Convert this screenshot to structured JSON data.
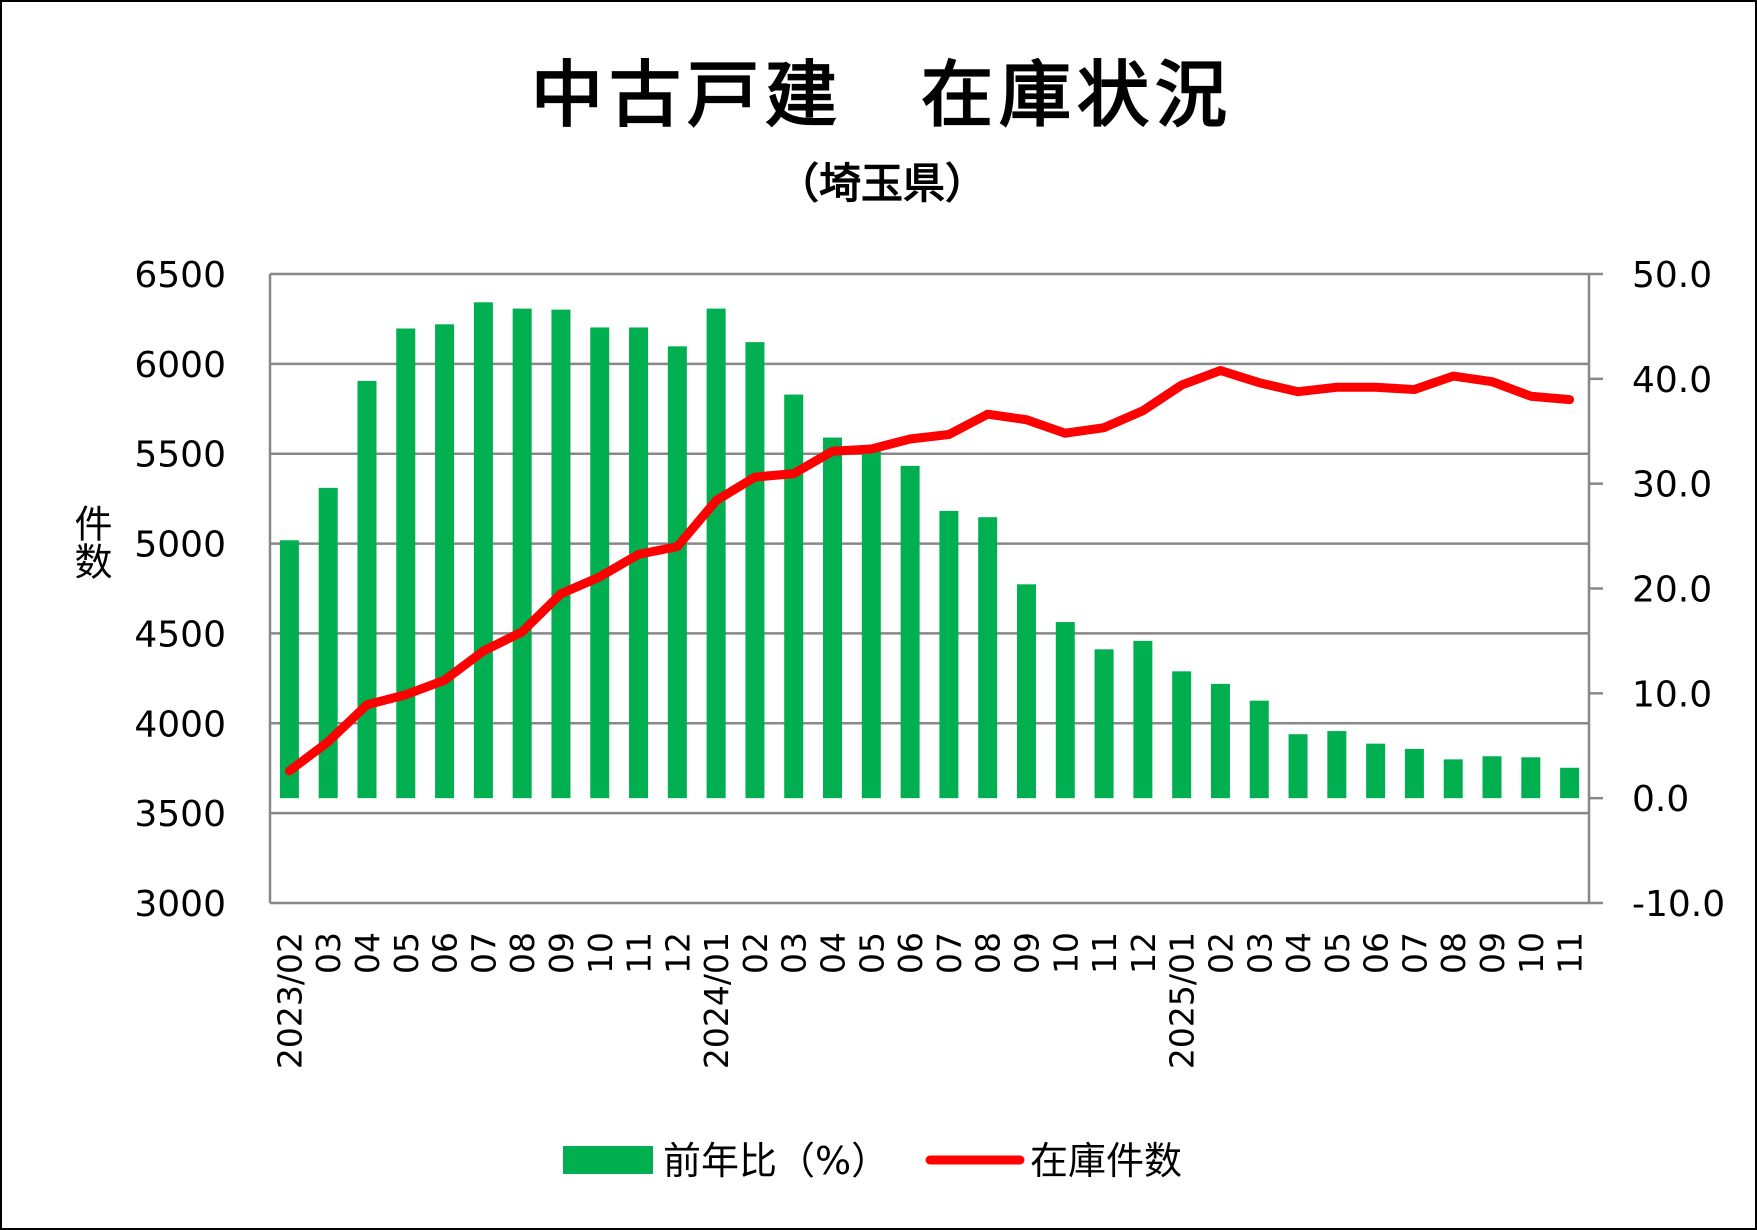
{
  "chart_data": {
    "type": "bar+line",
    "title": "中古戸建　在庫状況",
    "subtitle": "（埼玉県）",
    "ylabel_left": "件数",
    "categories": [
      "2023/02",
      "03",
      "04",
      "05",
      "06",
      "07",
      "08",
      "09",
      "10",
      "11",
      "12",
      "2024/01",
      "02",
      "03",
      "04",
      "05",
      "06",
      "07",
      "08",
      "09",
      "10",
      "11",
      "12",
      "2025/01",
      "02",
      "03",
      "04",
      "05",
      "06",
      "07",
      "08",
      "09",
      "10",
      "11"
    ],
    "left_axis": {
      "min": 3000,
      "max": 6500,
      "step": 500,
      "ticks": [
        "3000",
        "3500",
        "4000",
        "4500",
        "5000",
        "5500",
        "6000",
        "6500"
      ]
    },
    "right_axis": {
      "min": -10,
      "max": 50,
      "step": 10,
      "ticks": [
        "-10.0",
        "0.0",
        "10.0",
        "20.0",
        "30.0",
        "40.0",
        "50.0"
      ],
      "negative_color": "#e00000"
    },
    "grid": true,
    "legend_position": "bottom",
    "series": [
      {
        "name": "前年比（%）",
        "type": "bar",
        "axis": "right",
        "color": "#00b050",
        "values": [
          24.6,
          29.6,
          39.8,
          44.8,
          45.2,
          47.3,
          46.7,
          46.6,
          44.9,
          44.9,
          43.1,
          46.7,
          43.5,
          38.5,
          34.4,
          33.5,
          31.7,
          27.4,
          26.8,
          20.4,
          16.8,
          14.2,
          15.0,
          12.1,
          10.9,
          9.3,
          6.1,
          6.4,
          5.2,
          4.7,
          3.7,
          4.0,
          3.9,
          2.9
        ]
      },
      {
        "name": "在庫件数",
        "type": "line",
        "axis": "left",
        "color": "#ff0000",
        "values": [
          3735,
          3897,
          4103,
          4159,
          4240,
          4402,
          4509,
          4721,
          4815,
          4940,
          4983,
          5239,
          5370,
          5389,
          5514,
          5526,
          5582,
          5607,
          5720,
          5689,
          5614,
          5645,
          5739,
          5882,
          5963,
          5895,
          5845,
          5870,
          5870,
          5857,
          5932,
          5901,
          5820,
          5801
        ]
      }
    ]
  }
}
